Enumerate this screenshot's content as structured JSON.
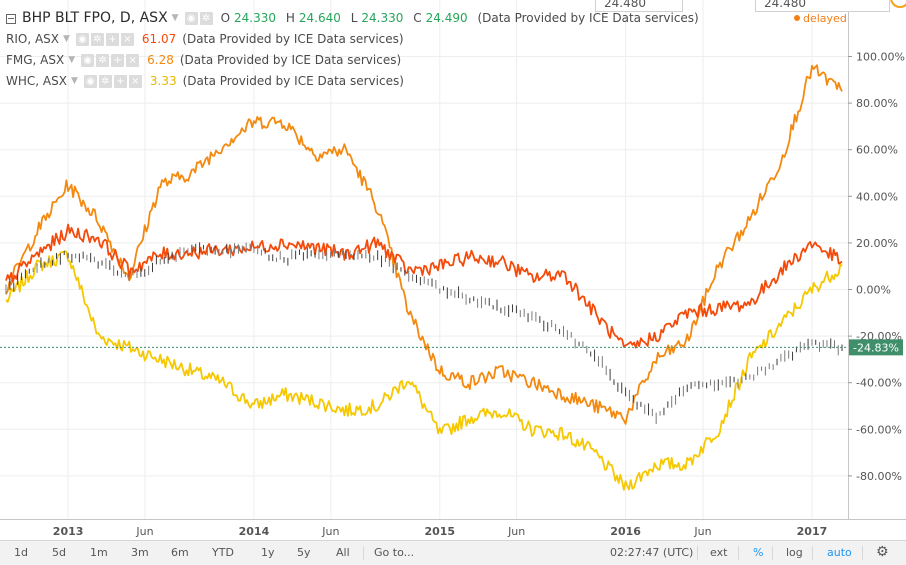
{
  "header": {
    "symbol": "BHP BLT FPO, D, ASX",
    "ohlc": [
      {
        "label": "O",
        "value": "24.330"
      },
      {
        "label": "H",
        "value": "24.640"
      },
      {
        "label": "L",
        "value": "24.330"
      },
      {
        "label": "C",
        "value": "24.490"
      }
    ],
    "provider": "(Data Provided by ICE Data services)",
    "delayed": "delayed",
    "top_quote_left": "24.480",
    "top_quote_right": "24.480"
  },
  "compare": [
    {
      "symbol": "RIO, ASX",
      "value": "61.07",
      "provider": "(Data Provided by ICE Data services)",
      "color": "#f44a0a"
    },
    {
      "symbol": "FMG, ASX",
      "value": "6.28",
      "provider": "(Data Provided by ICE Data services)",
      "color": "#f4890f"
    },
    {
      "symbol": "WHC, ASX",
      "value": "3.33",
      "provider": "(Data Provided by ICE Data services)",
      "color": "#f6c800"
    }
  ],
  "toolbar": {
    "ranges": [
      "1d",
      "5d",
      "1m",
      "3m",
      "6m",
      "YTD",
      "1y",
      "5y",
      "All"
    ],
    "goto": "Go to...",
    "time": "02:27:47 (UTC)",
    "ext": "ext",
    "percent": "%",
    "log": "log",
    "auto": "auto"
  },
  "chart_data": {
    "type": "line",
    "y_unit": "percent change",
    "ylim": [
      -100,
      115
    ],
    "y_ticks": [
      "100.00%",
      "80.00%",
      "60.00%",
      "40.00%",
      "20.00%",
      "0.00%",
      "-20.00%",
      "-40.00%",
      "-60.00%",
      "-80.00%"
    ],
    "y_tick_values": [
      100,
      80,
      60,
      40,
      20,
      0,
      -20,
      -40,
      -60,
      -80
    ],
    "x_ticks": [
      "2013",
      "Jun",
      "2014",
      "Jun",
      "2015",
      "Jun",
      "2016",
      "Jun",
      "2017"
    ],
    "x_tick_dates": [
      "2013-01",
      "2013-06",
      "2014-01",
      "2014-06",
      "2015-01",
      "2015-06",
      "2016-01",
      "2016-06",
      "2017-01"
    ],
    "last_value_label": "-24.83%",
    "last_value": -24.83,
    "series": [
      {
        "name": "BHP BLT FPO",
        "style": "candles",
        "color": "#555555",
        "x": [
          "2012-09",
          "2012-11",
          "2013-01",
          "2013-03",
          "2013-05",
          "2013-07",
          "2013-09",
          "2013-11",
          "2014-01",
          "2014-03",
          "2014-05",
          "2014-07",
          "2014-09",
          "2014-11",
          "2015-01",
          "2015-03",
          "2015-05",
          "2015-07",
          "2015-09",
          "2015-11",
          "2016-01",
          "2016-03",
          "2016-05",
          "2016-07",
          "2016-09",
          "2016-11",
          "2017-01",
          "2017-03"
        ],
        "y": [
          0,
          10,
          15,
          12,
          5,
          12,
          17,
          17,
          17,
          13,
          16,
          15,
          14,
          6,
          0,
          -4,
          -8,
          -12,
          -18,
          -28,
          -45,
          -55,
          -42,
          -41,
          -38,
          -30,
          -23,
          -25
        ]
      },
      {
        "name": "RIO, ASX",
        "style": "line",
        "color": "#f44a0a",
        "x": [
          "2012-09",
          "2012-11",
          "2013-01",
          "2013-03",
          "2013-05",
          "2013-07",
          "2013-09",
          "2013-11",
          "2014-01",
          "2014-03",
          "2014-05",
          "2014-07",
          "2014-09",
          "2014-11",
          "2015-01",
          "2015-03",
          "2015-05",
          "2015-07",
          "2015-09",
          "2015-11",
          "2016-01",
          "2016-03",
          "2016-05",
          "2016-07",
          "2016-09",
          "2016-11",
          "2017-01",
          "2017-03"
        ],
        "y": [
          3,
          15,
          25,
          22,
          8,
          15,
          16,
          17,
          18,
          20,
          18,
          15,
          20,
          8,
          10,
          14,
          12,
          5,
          7,
          -10,
          -26,
          -20,
          -10,
          -8,
          -6,
          8,
          20,
          12
        ]
      },
      {
        "name": "FMG, ASX",
        "style": "line",
        "color": "#f4890f",
        "x": [
          "2012-09",
          "2012-11",
          "2013-01",
          "2013-03",
          "2013-05",
          "2013-07",
          "2013-09",
          "2013-11",
          "2014-01",
          "2014-03",
          "2014-05",
          "2014-07",
          "2014-09",
          "2014-11",
          "2015-01",
          "2015-03",
          "2015-05",
          "2015-07",
          "2015-09",
          "2015-11",
          "2016-01",
          "2016-03",
          "2016-05",
          "2016-07",
          "2016-09",
          "2016-11",
          "2017-01",
          "2017-03"
        ],
        "y": [
          0,
          25,
          45,
          30,
          5,
          45,
          50,
          62,
          72,
          72,
          58,
          60,
          35,
          -10,
          -35,
          -40,
          -35,
          -40,
          -45,
          -50,
          -55,
          -30,
          -22,
          10,
          30,
          55,
          95,
          85
        ]
      },
      {
        "name": "WHC, ASX",
        "style": "line",
        "color": "#f6c800",
        "x": [
          "2012-09",
          "2012-11",
          "2013-01",
          "2013-03",
          "2013-05",
          "2013-07",
          "2013-09",
          "2013-11",
          "2014-01",
          "2014-03",
          "2014-05",
          "2014-07",
          "2014-09",
          "2014-11",
          "2015-01",
          "2015-03",
          "2015-05",
          "2015-07",
          "2015-09",
          "2015-11",
          "2016-01",
          "2016-03",
          "2016-05",
          "2016-07",
          "2016-09",
          "2016-11",
          "2017-01",
          "2017-03"
        ],
        "y": [
          -5,
          10,
          15,
          -20,
          -25,
          -30,
          -35,
          -40,
          -50,
          -45,
          -48,
          -52,
          -50,
          -38,
          -62,
          -55,
          -52,
          -60,
          -62,
          -70,
          -85,
          -75,
          -75,
          -60,
          -30,
          -15,
          0,
          10
        ]
      }
    ]
  }
}
